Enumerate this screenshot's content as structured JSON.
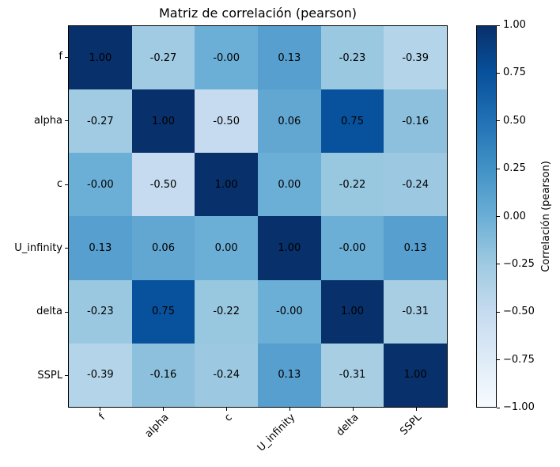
{
  "chart_data": {
    "type": "heatmap",
    "title": "Matriz de correlación (pearson)",
    "categories": [
      "f",
      "alpha",
      "c",
      "U_infinity",
      "delta",
      "SSPL"
    ],
    "values": [
      [
        1.0,
        -0.27,
        -0.0,
        0.13,
        -0.23,
        -0.39
      ],
      [
        -0.27,
        1.0,
        -0.5,
        0.06,
        0.75,
        -0.16
      ],
      [
        -0.0,
        -0.5,
        1.0,
        0.0,
        -0.22,
        -0.24
      ],
      [
        0.13,
        0.06,
        0.0,
        1.0,
        -0.0,
        0.13
      ],
      [
        -0.23,
        0.75,
        -0.22,
        -0.0,
        1.0,
        -0.31
      ],
      [
        -0.39,
        -0.16,
        -0.24,
        0.13,
        -0.31,
        1.0
      ]
    ],
    "cell_labels": [
      [
        "1.00",
        "-0.27",
        "-0.00",
        "0.13",
        "-0.23",
        "-0.39"
      ],
      [
        "-0.27",
        "1.00",
        "-0.50",
        "0.06",
        "0.75",
        "-0.16"
      ],
      [
        "-0.00",
        "-0.50",
        "1.00",
        "0.00",
        "-0.22",
        "-0.24"
      ],
      [
        "0.13",
        "0.06",
        "0.00",
        "1.00",
        "-0.00",
        "0.13"
      ],
      [
        "-0.23",
        "0.75",
        "-0.22",
        "-0.00",
        "1.00",
        "-0.31"
      ],
      [
        "-0.39",
        "-0.16",
        "-0.24",
        "0.13",
        "-0.31",
        "1.00"
      ]
    ],
    "vmin": -1,
    "vmax": 1,
    "colormap": "Blues",
    "colormap_stops": [
      "#f7fbff",
      "#deebf7",
      "#c6dbef",
      "#9ecae1",
      "#6baed6",
      "#4292c6",
      "#2171b5",
      "#08519c",
      "#08306b"
    ],
    "colorbar": {
      "label": "Correlación (pearson)",
      "ticks": [
        "1.00",
        "0.75",
        "0.50",
        "0.25",
        "0.00",
        "−0.25",
        "−0.50",
        "−0.75",
        "−1.00"
      ]
    },
    "x_tick_rotation_deg": 45,
    "grid": false,
    "legend": "none",
    "text_color": "#000000",
    "background": "#ffffff"
  }
}
